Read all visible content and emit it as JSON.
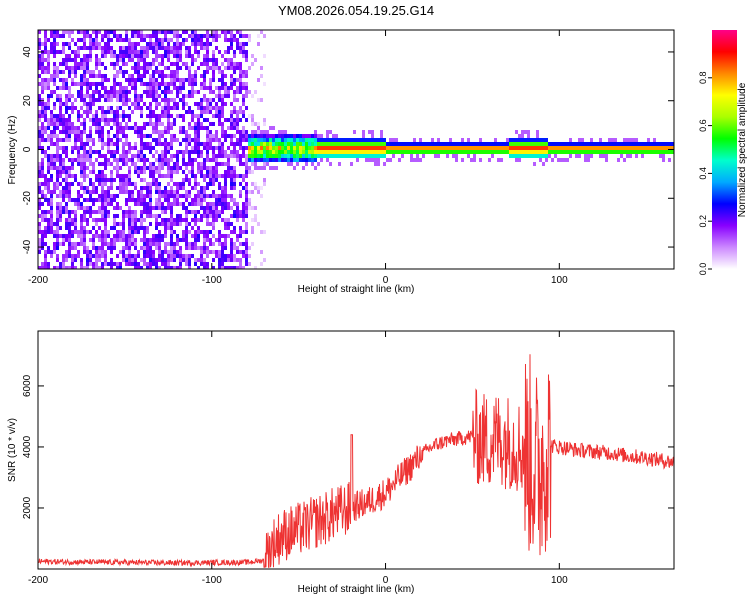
{
  "title": "YM08.2026.054.19.25.G14",
  "colors": {
    "snr_line": "#ee3333",
    "axis": "#000000"
  },
  "chart_data": [
    {
      "type": "heatmap",
      "xlabel": "Height of straight line (km)",
      "ylabel": "Frequency (Hz)",
      "xlim": [
        -200,
        166
      ],
      "ylim": [
        -49,
        49
      ],
      "x_ticks": [
        -200,
        -100,
        0,
        100
      ],
      "y_ticks": [
        40,
        20,
        0,
        -20,
        -40
      ],
      "colorbar": {
        "label": "Normalized spectral amplitude",
        "range": [
          0,
          1
        ],
        "ticks": [
          "0.0",
          "0.2",
          "0.4",
          "0.6",
          "0.8"
        ],
        "stops": [
          "#ffffff",
          "#cc88ff",
          "#8800ff",
          "#0000ff",
          "#00aaff",
          "#00ffcc",
          "#00ff00",
          "#aaff00",
          "#ffff00",
          "#ff8800",
          "#ff0000",
          "#ff0088"
        ]
      },
      "regions": [
        {
          "name": "noise",
          "x_range": [
            -200,
            -80
          ],
          "freq_range": [
            -49,
            49
          ],
          "amplitude": [
            0.0,
            0.25
          ]
        },
        {
          "name": "tone",
          "x_range": [
            -80,
            166
          ],
          "freq_center": 1,
          "amplitude_peak": 0.95
        }
      ]
    },
    {
      "type": "line",
      "xlabel": "Height of straight line (km)",
      "ylabel": "SNR (10 * v/v)",
      "xlim": [
        -200,
        166
      ],
      "ylim": [
        0,
        7800
      ],
      "x_ticks": [
        -200,
        -100,
        0,
        100
      ],
      "y_ticks": [
        2000,
        4000,
        6000
      ],
      "series": [
        {
          "x": [
            -200,
            -180,
            -160,
            -140,
            -120,
            -100,
            -80,
            -70,
            -65,
            -60,
            -55,
            -50,
            -45,
            -40,
            -35,
            -30,
            -25,
            -20,
            -15,
            -10,
            -5,
            0,
            5,
            10,
            15,
            20,
            25,
            30,
            35,
            40,
            45,
            50,
            55,
            60,
            65,
            70,
            75,
            80,
            85,
            88,
            90,
            92,
            95,
            100,
            110,
            120,
            130,
            140,
            150,
            160,
            166
          ],
          "y": [
            250,
            230,
            220,
            210,
            200,
            210,
            220,
            280,
            800,
            1100,
            1200,
            1300,
            1400,
            1550,
            1650,
            1800,
            1900,
            2000,
            2100,
            2200,
            2350,
            2500,
            2800,
            3100,
            3400,
            3700,
            3950,
            4100,
            4200,
            4250,
            4300,
            4350,
            4250,
            4200,
            4300,
            4200,
            4100,
            3900,
            3600,
            3000,
            3500,
            3900,
            4050,
            4000,
            3900,
            3850,
            3800,
            3700,
            3650,
            3550,
            3500
          ]
        }
      ]
    }
  ]
}
